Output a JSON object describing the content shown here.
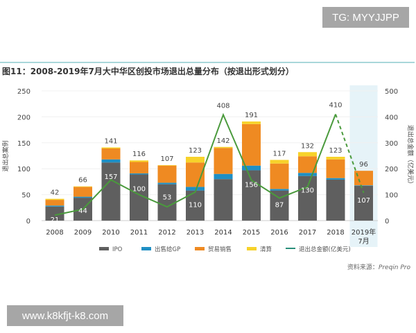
{
  "watermarks": {
    "top": "TG: MYYJJPP",
    "bottom": "www.k8kfjt-k8.com"
  },
  "source": {
    "label": "资料来源：",
    "name": "Preqin Pro"
  },
  "chart_data": {
    "type": "bar",
    "stacked": true,
    "title": "图11：2008-2019年7月大中华区创投市场退出总量分布（按退出形式划分）",
    "ylabel": "退出总案例",
    "y2label": "退出总金额（亿美元）",
    "ylim": [
      0,
      250
    ],
    "y2lim": [
      0,
      500
    ],
    "yticks": [
      0,
      50,
      100,
      150,
      200,
      250
    ],
    "y2ticks": [
      0,
      100,
      200,
      300,
      400,
      500
    ],
    "categories": [
      "2008",
      "2009",
      "2010",
      "2011",
      "2012",
      "2013",
      "2014",
      "2015",
      "2016",
      "2017",
      "2018",
      "2019年\n7月"
    ],
    "highlight_category": "2019年\n7月",
    "series": [
      {
        "name": "IPO",
        "color": "#5f5f5f",
        "values": [
          27,
          44,
          112,
          89,
          70,
          58,
          80,
          97,
          58,
          86,
          79,
          67
        ]
      },
      {
        "name": "出售给GP",
        "color": "#1f8fc4",
        "values": [
          2,
          2,
          6,
          2,
          3,
          7,
          10,
          9,
          3,
          6,
          3,
          1
        ]
      },
      {
        "name": "贸易销售",
        "color": "#ef8a22",
        "values": [
          11,
          19,
          21,
          22,
          33,
          47,
          50,
          80,
          49,
          32,
          36,
          28
        ]
      },
      {
        "name": "清算",
        "color": "#f7d22a",
        "values": [
          2,
          1,
          2,
          3,
          1,
          11,
          2,
          5,
          7,
          8,
          5,
          0
        ]
      }
    ],
    "totals": [
      42,
      66,
      141,
      116,
      107,
      123,
      142,
      191,
      117,
      132,
      123,
      96
    ],
    "line": {
      "name": "退出总金额(亿美元)",
      "color": "#4a9a3c",
      "axis": "right",
      "values": [
        21,
        44,
        157,
        100,
        53,
        110,
        408,
        156,
        87,
        130,
        410,
        107
      ],
      "dashed_last_segment": true
    },
    "legend_position": "bottom",
    "grid": true
  }
}
